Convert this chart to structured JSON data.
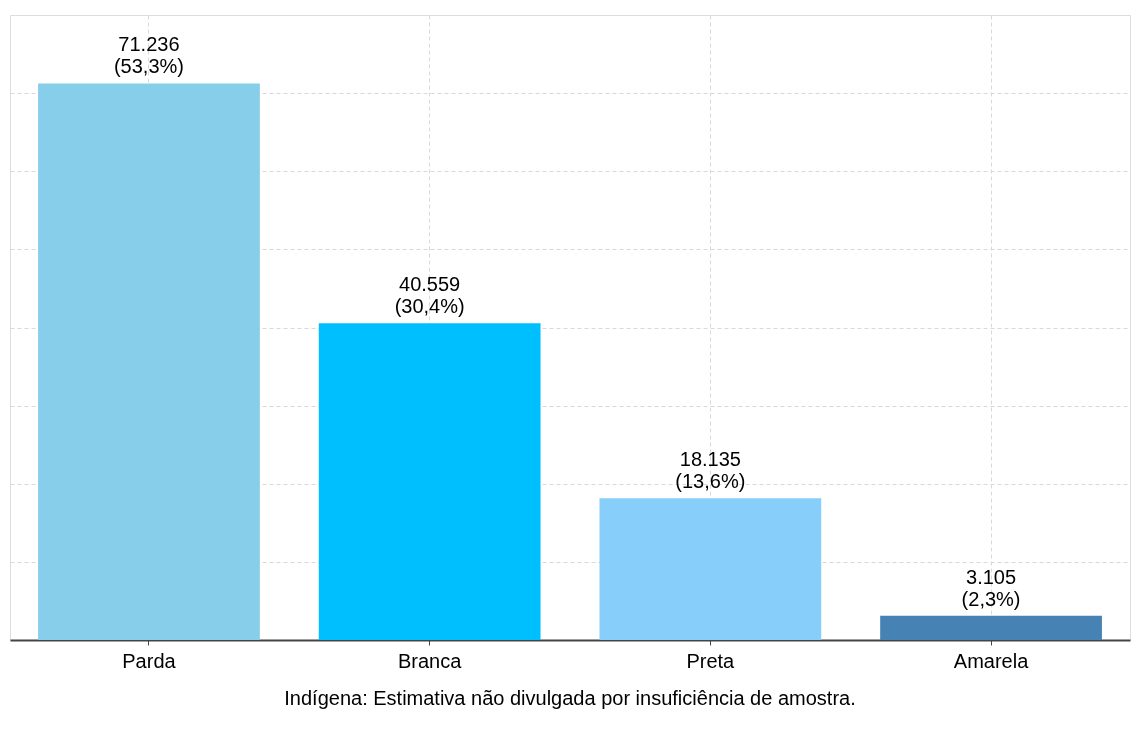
{
  "chart_data": {
    "type": "bar",
    "categories": [
      "Parda",
      "Branca",
      "Preta",
      "Amarela"
    ],
    "values": [
      71236,
      40559,
      18135,
      3105
    ],
    "colors": [
      "#87ceeb",
      "#00bfff",
      "#87cefa",
      "#4682b4"
    ],
    "value_labels": [
      "71.236\n(53,3%)",
      "40.559\n(30,4%)",
      "18.135\n(13,6%)",
      "3.105\n(2,3%)"
    ],
    "ylim": [
      0,
      80000
    ],
    "yticks": [
      {
        "value": 0,
        "label": null
      },
      {
        "value": 10000,
        "label": null
      },
      {
        "value": 20000,
        "label": null
      },
      {
        "value": 30000,
        "label": null
      },
      {
        "value": 40000,
        "label": null
      },
      {
        "value": 50000,
        "label": null
      },
      {
        "value": 60000,
        "label": null
      },
      {
        "value": 70000,
        "label": null
      }
    ],
    "grid": true,
    "tick_labels": "x",
    "annotations": [
      "Indígena: Estimativa não divulgada por insuficiência de amostra."
    ]
  }
}
